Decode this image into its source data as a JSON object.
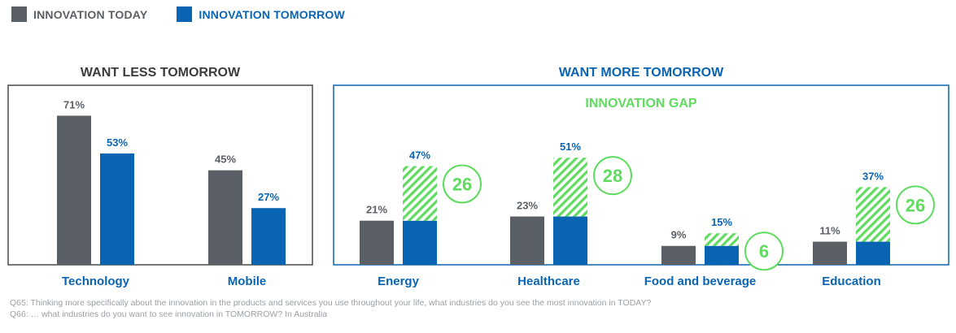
{
  "legend": {
    "today_label": "INNOVATION TODAY",
    "tomorrow_label": "INNOVATION TOMORROW"
  },
  "panels": {
    "less_title": "WANT LESS TOMORROW",
    "more_title": "WANT MORE TOMORROW",
    "gap_title": "INNOVATION GAP"
  },
  "colors": {
    "today": "#5b6066",
    "tomorrow": "#0a64b4",
    "gap": "#5fdc5f",
    "less_title": "#3c3c3c",
    "more_title": "#0a64b4",
    "category": "#0a64b4"
  },
  "chart_data": {
    "type": "bar",
    "categories": [
      "Technology",
      "Mobile",
      "Energy",
      "Healthcare",
      "Food and beverage",
      "Education"
    ],
    "series": [
      {
        "name": "INNOVATION TODAY",
        "values": [
          71,
          45,
          21,
          23,
          9,
          11
        ]
      },
      {
        "name": "INNOVATION TOMORROW",
        "values": [
          53,
          27,
          47,
          51,
          15,
          37
        ]
      }
    ],
    "value_labels": {
      "today": [
        "71%",
        "45%",
        "21%",
        "23%",
        "9%",
        "11%"
      ],
      "tomorrow": [
        "53%",
        "27%",
        "47%",
        "51%",
        "15%",
        "37%"
      ]
    },
    "innovation_gap": [
      null,
      null,
      26,
      28,
      6,
      26
    ],
    "groups": [
      {
        "title": "WANT LESS TOMORROW",
        "categories": [
          "Technology",
          "Mobile"
        ]
      },
      {
        "title": "WANT MORE TOMORROW",
        "categories": [
          "Energy",
          "Healthcare",
          "Food and beverage",
          "Education"
        ]
      }
    ],
    "ylim": [
      0,
      75
    ],
    "grid": false
  },
  "footnote": "Q65: Thinking more specifically about the innovation in the products and services you use throughout your life, what industries do you see the most innovation in TODAY? Q66: … what industries do you want to see innovation in TOMORROW? In Australia"
}
